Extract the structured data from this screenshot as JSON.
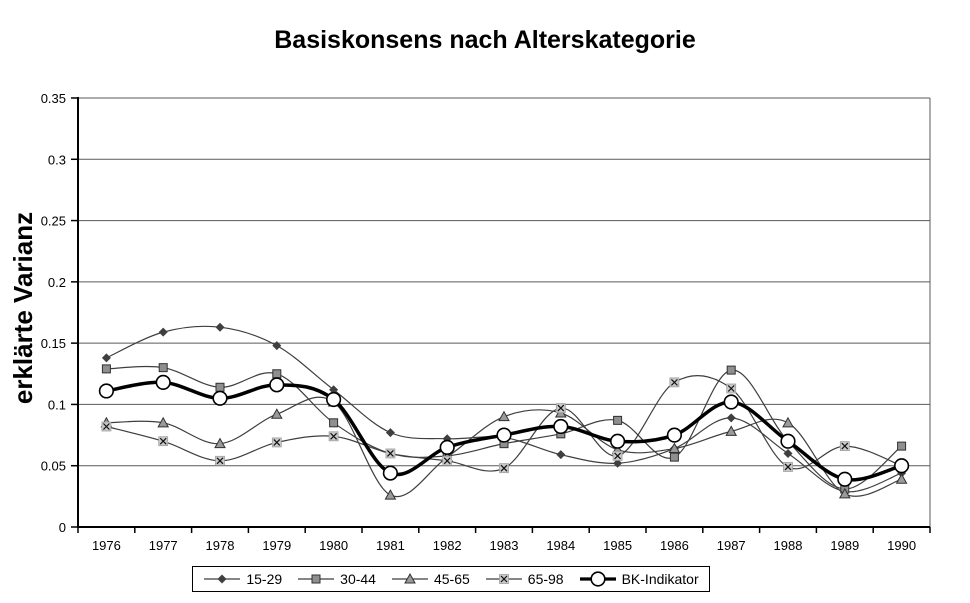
{
  "page": {
    "title": "Basiskonsens nach Alterskategorie"
  },
  "colors": {
    "background": "#ffffff",
    "text": "#000000",
    "grid_line": "#5a5a5a",
    "axis_line": "#000000",
    "thin_series_line": "#3f3f3f",
    "thick_series_line": "#000000",
    "marker_dark_fill": "#3f3f3f",
    "marker_gray_fill": "#8f8f8f",
    "marker_triangle_fill": "#9a9a9a",
    "marker_xbox_fill": "#c9c9c9",
    "marker_circle_fill": "#ffffff"
  },
  "chart_data": {
    "type": "line",
    "title": "Basiskonsens nach Alterskategorie",
    "xlabel": "",
    "ylabel": "erklärte Varianz",
    "ylim": [
      0,
      0.35
    ],
    "y_ticks": [
      0,
      0.05,
      0.1,
      0.15,
      0.2,
      0.25,
      0.3,
      0.35
    ],
    "y_tick_labels": [
      "0",
      "0.05",
      "0.1",
      "0.15",
      "0.2",
      "0.25",
      "0.3",
      "0.35"
    ],
    "grid": true,
    "smoothed_lines": true,
    "legend_position": "bottom",
    "categories": [
      "1976",
      "1977",
      "1978",
      "1979",
      "1980",
      "1981",
      "1982",
      "1983",
      "1984",
      "1985",
      "1986",
      "1987",
      "1988",
      "1989",
      "1990"
    ],
    "series": [
      {
        "name": "15-29",
        "marker": "diamond",
        "thick": false,
        "values": [
          0.138,
          0.159,
          0.163,
          0.148,
          0.112,
          0.077,
          0.072,
          0.073,
          0.059,
          0.052,
          0.064,
          0.089,
          0.06,
          0.029,
          0.044
        ]
      },
      {
        "name": "30-44",
        "marker": "square",
        "thick": false,
        "values": [
          0.129,
          0.13,
          0.114,
          0.125,
          0.085,
          0.06,
          0.058,
          0.068,
          0.076,
          0.087,
          0.057,
          0.128,
          0.07,
          0.031,
          0.066
        ]
      },
      {
        "name": "45-65",
        "marker": "triangle",
        "thick": false,
        "values": [
          0.085,
          0.085,
          0.068,
          0.092,
          0.102,
          0.026,
          0.057,
          0.09,
          0.093,
          0.063,
          0.064,
          0.078,
          0.085,
          0.027,
          0.039
        ]
      },
      {
        "name": "65-98",
        "marker": "xbox",
        "thick": false,
        "values": [
          0.082,
          0.07,
          0.054,
          0.069,
          0.074,
          0.06,
          0.054,
          0.048,
          0.097,
          0.058,
          0.118,
          0.113,
          0.049,
          0.066,
          0.05
        ]
      },
      {
        "name": "BK-Indikator",
        "marker": "circle",
        "thick": true,
        "values": [
          0.111,
          0.118,
          0.105,
          0.116,
          0.104,
          0.044,
          0.065,
          0.075,
          0.082,
          0.07,
          0.075,
          0.102,
          0.07,
          0.039,
          0.05
        ]
      }
    ]
  }
}
